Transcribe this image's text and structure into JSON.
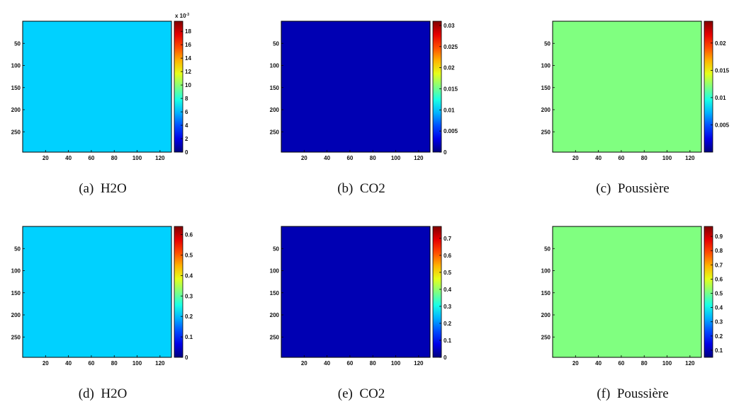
{
  "figure": {
    "panels": [
      {
        "label": "(a)",
        "name": "H2O",
        "colorbar": {
          "ticks": [
            "0",
            "2",
            "4",
            "6",
            "8",
            "10",
            "12",
            "14",
            "16",
            "18"
          ],
          "max_value": 19.5,
          "exponent_label": "x 10",
          "exponent_power": "-3"
        },
        "pattern": "h2o"
      },
      {
        "label": "(b)",
        "name": "CO2",
        "colorbar": {
          "ticks": [
            "0",
            "0.005",
            "0.01",
            "0.015",
            "0.02",
            "0.025",
            "0.03"
          ],
          "max_value": 0.031,
          "exponent_label": "",
          "exponent_power": ""
        },
        "pattern": "co2"
      },
      {
        "label": "(c)",
        "name": "Poussière",
        "colorbar": {
          "ticks": [
            "0.005",
            "0.01",
            "0.015",
            "0.02"
          ],
          "max_value": 0.024,
          "exponent_label": "",
          "exponent_power": ""
        },
        "pattern": "dust"
      },
      {
        "label": "(d)",
        "name": "H2O",
        "colorbar": {
          "ticks": [
            "0",
            "0.1",
            "0.2",
            "0.3",
            "0.4",
            "0.5",
            "0.6"
          ],
          "max_value": 0.64,
          "exponent_label": "",
          "exponent_power": ""
        },
        "pattern": "h2o"
      },
      {
        "label": "(e)",
        "name": "CO2",
        "colorbar": {
          "ticks": [
            "0",
            "0.1",
            "0.2",
            "0.3",
            "0.4",
            "0.5",
            "0.6",
            "0.7"
          ],
          "max_value": 0.77,
          "exponent_label": "",
          "exponent_power": ""
        },
        "pattern": "co2"
      },
      {
        "label": "(f)",
        "name": "Poussière",
        "colorbar": {
          "ticks": [
            "0.1",
            "0.2",
            "0.3",
            "0.4",
            "0.5",
            "0.6",
            "0.7",
            "0.8",
            "0.9"
          ],
          "max_value": 0.97,
          "min_value": 0.05,
          "exponent_label": "",
          "exponent_power": ""
        },
        "pattern": "dust"
      }
    ],
    "x_ticks": [
      "20",
      "40",
      "60",
      "80",
      "100",
      "120"
    ],
    "y_ticks": [
      "50",
      "100",
      "150",
      "200",
      "250"
    ],
    "colors": {
      "low": "#00008f",
      "mid": "#30c8d0",
      "high": "#8f0000"
    }
  }
}
